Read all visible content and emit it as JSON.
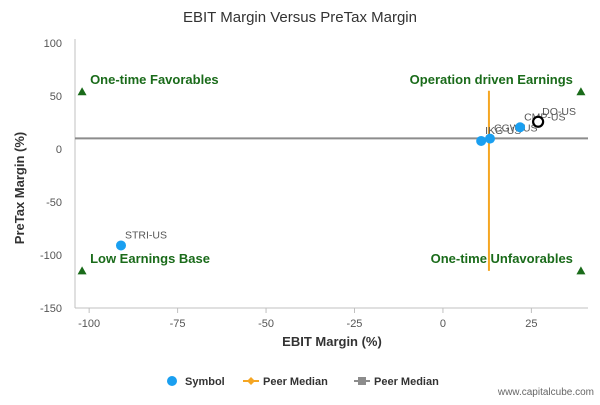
{
  "chart_data": {
    "type": "scatter",
    "title": "EBIT Margin Versus PreTax Margin",
    "xlabel": "EBIT Margin (%)",
    "ylabel": "PreTax Margin (%)",
    "xlim": [
      -104,
      41
    ],
    "ylim": [
      -150,
      100
    ],
    "xticks": [
      -100,
      -75,
      -50,
      -25,
      0,
      25
    ],
    "xtick_labels": [
      "-100",
      "-75",
      "-50",
      "-25",
      "0",
      "25"
    ],
    "yticks": [
      -150,
      -100,
      -50,
      0,
      50,
      100
    ],
    "ytick_labels": [
      "-150",
      "-100",
      "-50",
      "0",
      "50",
      "100"
    ],
    "grid": false,
    "legend_position": "bottom",
    "points": [
      {
        "label": "STRI-US",
        "x": -91,
        "y": -91,
        "highlight": false
      },
      {
        "label": "IKG-US",
        "x": 10.8,
        "y": 7.6,
        "highlight": false
      },
      {
        "label": "CGW-US",
        "x": 13.3,
        "y": 9.8,
        "highlight": false
      },
      {
        "label": "CMP-US",
        "x": 21.8,
        "y": 20.5,
        "highlight": false
      },
      {
        "label": "DO-US",
        "x": 26.9,
        "y": 25.7,
        "highlight": true
      }
    ],
    "peer_median_x": 13,
    "peer_median_y": 10,
    "peer_median_x_range": [
      -115,
      55
    ],
    "corner_markers": [
      {
        "label": "One-time Favorables",
        "x": -102,
        "y": 54,
        "anchor": "start"
      },
      {
        "label": "Operation driven Earnings",
        "x": 39,
        "y": 54,
        "anchor": "end"
      },
      {
        "label": "Low Earnings Base",
        "x": -102,
        "y": -115,
        "anchor": "start"
      },
      {
        "label": "One-time Unfavorables",
        "x": 39,
        "y": -115,
        "anchor": "end"
      }
    ],
    "legend": [
      {
        "label": "Symbol",
        "kind": "symbol"
      },
      {
        "label": "Peer Median",
        "kind": "peer-median-x"
      },
      {
        "label": "Peer Median",
        "kind": "peer-median-y"
      }
    ],
    "credit": "www.capitalcube.com",
    "colors": {
      "point": "#1a9ff0",
      "highlight_ring": "#000000",
      "median_x": "#f5a623",
      "median_y": "#8c8c8c",
      "corner": "#1a6b1a",
      "axis": "#c0c0c0",
      "text": "#333333"
    }
  }
}
